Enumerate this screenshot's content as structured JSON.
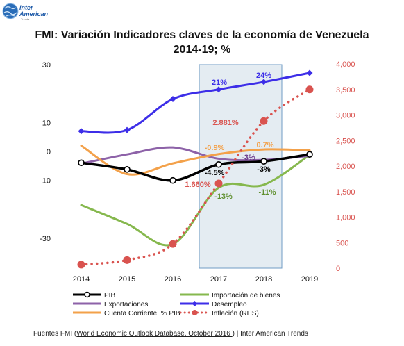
{
  "logo": {
    "line1": "Inter",
    "line2": "American",
    "line3": "Trends"
  },
  "title_line1": "FMI: Variación Indicadores claves de la economía de Venezuela",
  "title_line2": "2014-19; %",
  "source": {
    "prefix": "Fuentes FMI (",
    "link": "World Economic Outlook Database, October 2016 ",
    "suffix": ") | Inter American Trends"
  },
  "chart_data": {
    "type": "line",
    "categories": [
      "2014",
      "2015",
      "2016",
      "2017",
      "2018",
      "2019"
    ],
    "y_left": {
      "range": [
        -40,
        30
      ],
      "ticks": [
        "30",
        "10",
        "0",
        "-10",
        "-30"
      ],
      "tick_values": [
        30,
        10,
        0,
        -10,
        -30
      ]
    },
    "y_right": {
      "range": [
        0,
        4000
      ],
      "ticks": [
        "0",
        "500",
        "1,000",
        "1,500",
        "2,000",
        "2,500",
        "3,000",
        "3,500",
        "4,000"
      ],
      "tick_values": [
        0,
        500,
        1000,
        1500,
        2000,
        2500,
        3000,
        3500,
        4000
      ]
    },
    "highlight_range": [
      "2017",
      "2018"
    ],
    "series": [
      {
        "name": "PIB",
        "axis": "left",
        "color": "#000000",
        "marker": "circle-open",
        "values": [
          -3.9,
          -6.2,
          -10,
          -4.5,
          -3.4,
          -1.0
        ]
      },
      {
        "name": "Importación de bienes",
        "axis": "left",
        "color": "#86b84e",
        "marker": "none",
        "values": [
          -18.5,
          -25,
          -32,
          -12.5,
          -11.5,
          -1.2
        ]
      },
      {
        "name": "Exportaciones",
        "axis": "left",
        "color": "#8d62a8",
        "marker": "none",
        "values": [
          -4.2,
          -1.0,
          1.4,
          -2.5,
          -2.9,
          -1.5
        ]
      },
      {
        "name": "Desempleo",
        "axis": "left",
        "color": "#3d2ee8",
        "marker": "diamond",
        "values": [
          7.0,
          7.4,
          18.1,
          21.4,
          24.0,
          27.1
        ]
      },
      {
        "name": "Cuenta Corriente. % PIB",
        "axis": "left",
        "color": "#f3a14a",
        "marker": "none",
        "values": [
          2.0,
          -7.8,
          -4.1,
          -0.9,
          0.7,
          0.4
        ]
      },
      {
        "name": "Inflación (RHS)",
        "axis": "right",
        "color": "#d9534f",
        "marker": "dot",
        "values": [
          69,
          159,
          475,
          1660,
          2881,
          3500
        ]
      }
    ],
    "labels": [
      {
        "text": "21%",
        "color": "#3d2ee8"
      },
      {
        "text": "24%",
        "color": "#3d2ee8"
      },
      {
        "text": "-0.9%",
        "color": "#f3a14a"
      },
      {
        "text": "0.7%",
        "color": "#f3a14a"
      },
      {
        "text": "-3%",
        "color": "#6b3a8a"
      },
      {
        "text": "-4.5%",
        "color": "#000000"
      },
      {
        "text": "-3%",
        "color": "#000000"
      },
      {
        "text": "2.881%",
        "color": "#d9534f"
      },
      {
        "text": "1.660%",
        "color": "#d9534f"
      },
      {
        "text": "-13%",
        "color": "#5f8f2f"
      },
      {
        "text": "-11%",
        "color": "#5f8f2f"
      }
    ]
  }
}
